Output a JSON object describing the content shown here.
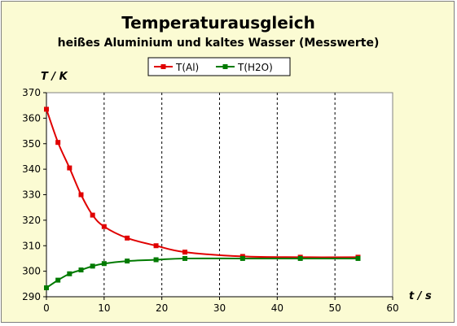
{
  "chart_data": {
    "type": "line",
    "title": "Temperaturausgleich",
    "subtitle": "heißes Aluminium und kaltes Wasser (Messwerte)",
    "ylabel": "T / K",
    "xlabel": "t / s",
    "xlim": [
      0,
      60
    ],
    "ylim": [
      290,
      370
    ],
    "xticks": [
      0,
      10,
      20,
      30,
      40,
      50,
      60
    ],
    "yticks": [
      290,
      300,
      310,
      320,
      330,
      340,
      350,
      360,
      370
    ],
    "grid": "vertical dashed",
    "legend_position": "top-center",
    "series": [
      {
        "name": "T(Al)",
        "color": "#e00000",
        "x": [
          0,
          2,
          4,
          6,
          8,
          10,
          14,
          19,
          24,
          34,
          44,
          54
        ],
        "y": [
          363.5,
          350.5,
          340.5,
          330,
          322,
          317.5,
          313,
          310,
          307.5,
          305.8,
          305.5,
          305.5
        ]
      },
      {
        "name": "T(H2O)",
        "color": "#007a00",
        "x": [
          0,
          2,
          4,
          6,
          8,
          10,
          14,
          19,
          24,
          34,
          44,
          54
        ],
        "y": [
          293.5,
          296.5,
          299,
          300.5,
          302,
          303,
          304,
          304.5,
          305,
          305,
          305,
          305
        ]
      }
    ]
  }
}
